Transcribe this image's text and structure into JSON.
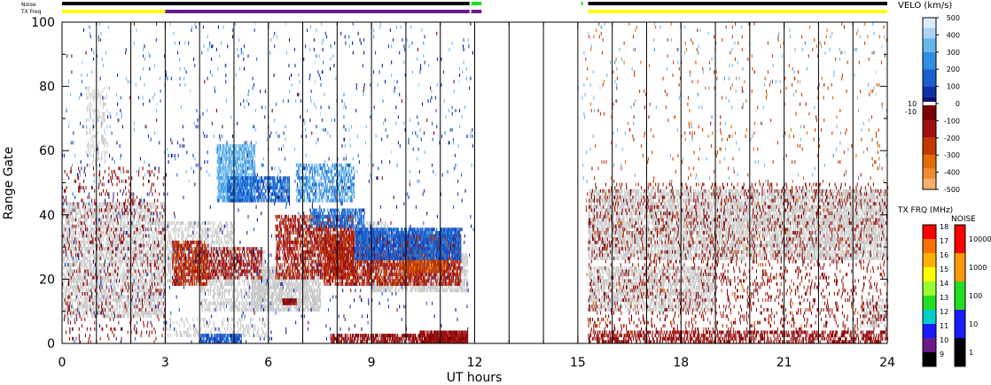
{
  "chart_data": {
    "type": "heatmap",
    "xlabel": "UT hours",
    "ylabel": "Range Gate",
    "xlim": [
      0,
      24
    ],
    "ylim": [
      0,
      100
    ],
    "x_ticks": [
      "0",
      "3",
      "6",
      "9",
      "12",
      "15",
      "18",
      "21",
      "24"
    ],
    "x_tick_values": [
      0,
      3,
      6,
      9,
      12,
      15,
      18,
      21,
      24
    ],
    "y_ticks": [
      "0",
      "20",
      "40",
      "60",
      "80",
      "100"
    ],
    "y_tick_values": [
      0,
      20,
      40,
      60,
      80,
      100
    ],
    "scan_boundary_hours": [
      1,
      2,
      3,
      4,
      5,
      6,
      7,
      8,
      9,
      10,
      11,
      12,
      13,
      14,
      15,
      16,
      17,
      18,
      19,
      20,
      21,
      22,
      23
    ],
    "data_gap_hours": [
      12,
      15
    ],
    "ground_scatter_color": "#c8c8c8",
    "status_bars": {
      "noise_label": "Noise",
      "txfreq_label": "TX Freq",
      "noise_segments": [
        {
          "start": 0,
          "end": 11.85,
          "color": "#000000"
        },
        {
          "start": 11.9,
          "end": 12.2,
          "color": "#22dd22"
        },
        {
          "start": 15.1,
          "end": 15.15,
          "color": "#22dd22"
        },
        {
          "start": 15.3,
          "end": 24,
          "color": "#000000"
        }
      ],
      "txfreq_segments": [
        {
          "start": 0,
          "end": 3,
          "color": "#ffff00"
        },
        {
          "start": 3,
          "end": 11.85,
          "color": "#6b1a8a"
        },
        {
          "start": 11.9,
          "end": 12.2,
          "color": "#6b1a8a"
        },
        {
          "start": 15.3,
          "end": 24,
          "color": "#ffff00"
        }
      ]
    },
    "velocity_scale": {
      "title": "VELO (km/s)",
      "labels": [
        "500",
        "400",
        "300",
        "200",
        "100",
        "0",
        "-100",
        "-200",
        "-300",
        "-400",
        "-500"
      ],
      "values": [
        500,
        400,
        300,
        200,
        100,
        0,
        -100,
        -200,
        -300,
        -400,
        -500
      ],
      "side_labels": [
        "10",
        "-10"
      ],
      "colors": [
        "#d8ecfb",
        "#a9d5f4",
        "#66b7ec",
        "#2f8fe0",
        "#1a5fd0",
        "#0f2fa8",
        "#06127a",
        "#ffffff",
        "#7a0000",
        "#a01010",
        "#c23a00",
        "#e06b00",
        "#f08a30",
        "#f7b070",
        "#fbd7b0"
      ]
    },
    "freq_scale": {
      "title": "TX FRQ (MHz)",
      "labels": [
        "18",
        "17",
        "16",
        "15",
        "14",
        "13",
        "12",
        "11",
        "10",
        "9"
      ],
      "values": [
        18,
        17,
        16,
        15,
        14,
        13,
        12,
        11,
        10,
        9
      ],
      "colors": [
        "#ff0000",
        "#ff7000",
        "#ffb000",
        "#ffff00",
        "#99ff33",
        "#22dd22",
        "#00cccc",
        "#1a1aff",
        "#6b1a8a",
        "#000000"
      ]
    },
    "noise_scale": {
      "title": "NOISE",
      "labels": [
        "10000",
        "1000",
        "100",
        "10",
        "1"
      ],
      "values": [
        10000,
        1000,
        100,
        10,
        1
      ],
      "colors": [
        "#ff0000",
        "#ff9900",
        "#22dd22",
        "#1a1aff",
        "#000000"
      ]
    },
    "ground_scatter_bands": [
      {
        "t0": 0.0,
        "t1": 3.0,
        "g0": 8,
        "g1": 44,
        "density": 0.42
      },
      {
        "t0": 3.0,
        "t1": 5.0,
        "g0": 18,
        "g1": 38,
        "density": 0.32
      },
      {
        "t0": 4.0,
        "t1": 6.0,
        "g0": 10,
        "g1": 30,
        "density": 0.3
      },
      {
        "t0": 5.5,
        "t1": 7.5,
        "g0": 10,
        "g1": 24,
        "density": 0.55
      },
      {
        "t0": 7.0,
        "t1": 9.5,
        "g0": 22,
        "g1": 38,
        "density": 0.35
      },
      {
        "t0": 9.0,
        "t1": 11.8,
        "g0": 16,
        "g1": 28,
        "density": 0.5
      },
      {
        "t0": 15.3,
        "t1": 24.0,
        "g0": 26,
        "g1": 48,
        "density": 0.5
      },
      {
        "t0": 15.3,
        "t1": 19.0,
        "g0": 10,
        "g1": 24,
        "density": 0.45
      },
      {
        "t0": 3.0,
        "t1": 6.0,
        "g0": 2,
        "g1": 8,
        "density": 0.2
      },
      {
        "t0": 23.2,
        "t1": 24.0,
        "g0": 5,
        "g1": 14,
        "density": 0.35
      },
      {
        "t0": 0.7,
        "t1": 1.3,
        "g0": 55,
        "g1": 80,
        "density": 0.15
      }
    ],
    "ionospheric_scatter_bands": [
      {
        "t0": 3.2,
        "t1": 4.2,
        "g0": 18,
        "g1": 32,
        "velocity": -250,
        "density": 0.6
      },
      {
        "t0": 4.2,
        "t1": 5.8,
        "g0": 20,
        "g1": 30,
        "velocity": -200,
        "density": 0.4
      },
      {
        "t0": 6.2,
        "t1": 8.5,
        "g0": 20,
        "g1": 40,
        "velocity": -220,
        "density": 0.45
      },
      {
        "t0": 7.6,
        "t1": 11.6,
        "g0": 18,
        "g1": 34,
        "velocity": -230,
        "density": 0.55
      },
      {
        "t0": 9.8,
        "t1": 11.2,
        "g0": 22,
        "g1": 34,
        "velocity": -300,
        "density": 0.5
      },
      {
        "t0": 4.5,
        "t1": 5.6,
        "g0": 44,
        "g1": 62,
        "velocity": 280,
        "density": 0.6
      },
      {
        "t0": 4.8,
        "t1": 6.6,
        "g0": 44,
        "g1": 52,
        "velocity": 150,
        "density": 0.55
      },
      {
        "t0": 6.8,
        "t1": 8.5,
        "g0": 44,
        "g1": 56,
        "velocity": 220,
        "density": 0.4
      },
      {
        "t0": 8.5,
        "t1": 11.6,
        "g0": 26,
        "g1": 36,
        "velocity": 140,
        "density": 0.7
      },
      {
        "t0": 7.2,
        "t1": 8.8,
        "g0": 36,
        "g1": 42,
        "velocity": 160,
        "density": 0.5
      },
      {
        "t0": 4.0,
        "t1": 5.2,
        "g0": 0,
        "g1": 3,
        "velocity": 130,
        "density": 0.7
      },
      {
        "t0": 7.8,
        "t1": 11.8,
        "g0": 0,
        "g1": 3,
        "velocity": -160,
        "density": 0.55
      },
      {
        "t0": 10.4,
        "t1": 11.8,
        "g0": 0,
        "g1": 4,
        "velocity": -180,
        "density": 0.75
      },
      {
        "t0": 6.4,
        "t1": 6.8,
        "g0": 12,
        "g1": 14,
        "velocity": -180,
        "density": 0.9
      },
      {
        "t0": 0.0,
        "t1": 3.0,
        "g0": 0,
        "g1": 55,
        "velocity": -150,
        "density": 0.06
      },
      {
        "t0": 15.3,
        "t1": 24.0,
        "g0": 0,
        "g1": 50,
        "velocity": -150,
        "density": 0.08
      },
      {
        "t0": 15.3,
        "t1": 24.0,
        "g0": 0,
        "g1": 4,
        "velocity": -170,
        "density": 0.35
      },
      {
        "t0": 0.0,
        "t1": 12.0,
        "g0": 0,
        "g1": 100,
        "velocity": 60,
        "density": 0.012
      },
      {
        "t0": 15.2,
        "t1": 24.0,
        "g0": 0,
        "g1": 100,
        "velocity": -300,
        "density": 0.012
      },
      {
        "t0": 0.0,
        "t1": 24.0,
        "g0": 50,
        "g1": 100,
        "velocity": 300,
        "density": 0.008
      }
    ]
  }
}
